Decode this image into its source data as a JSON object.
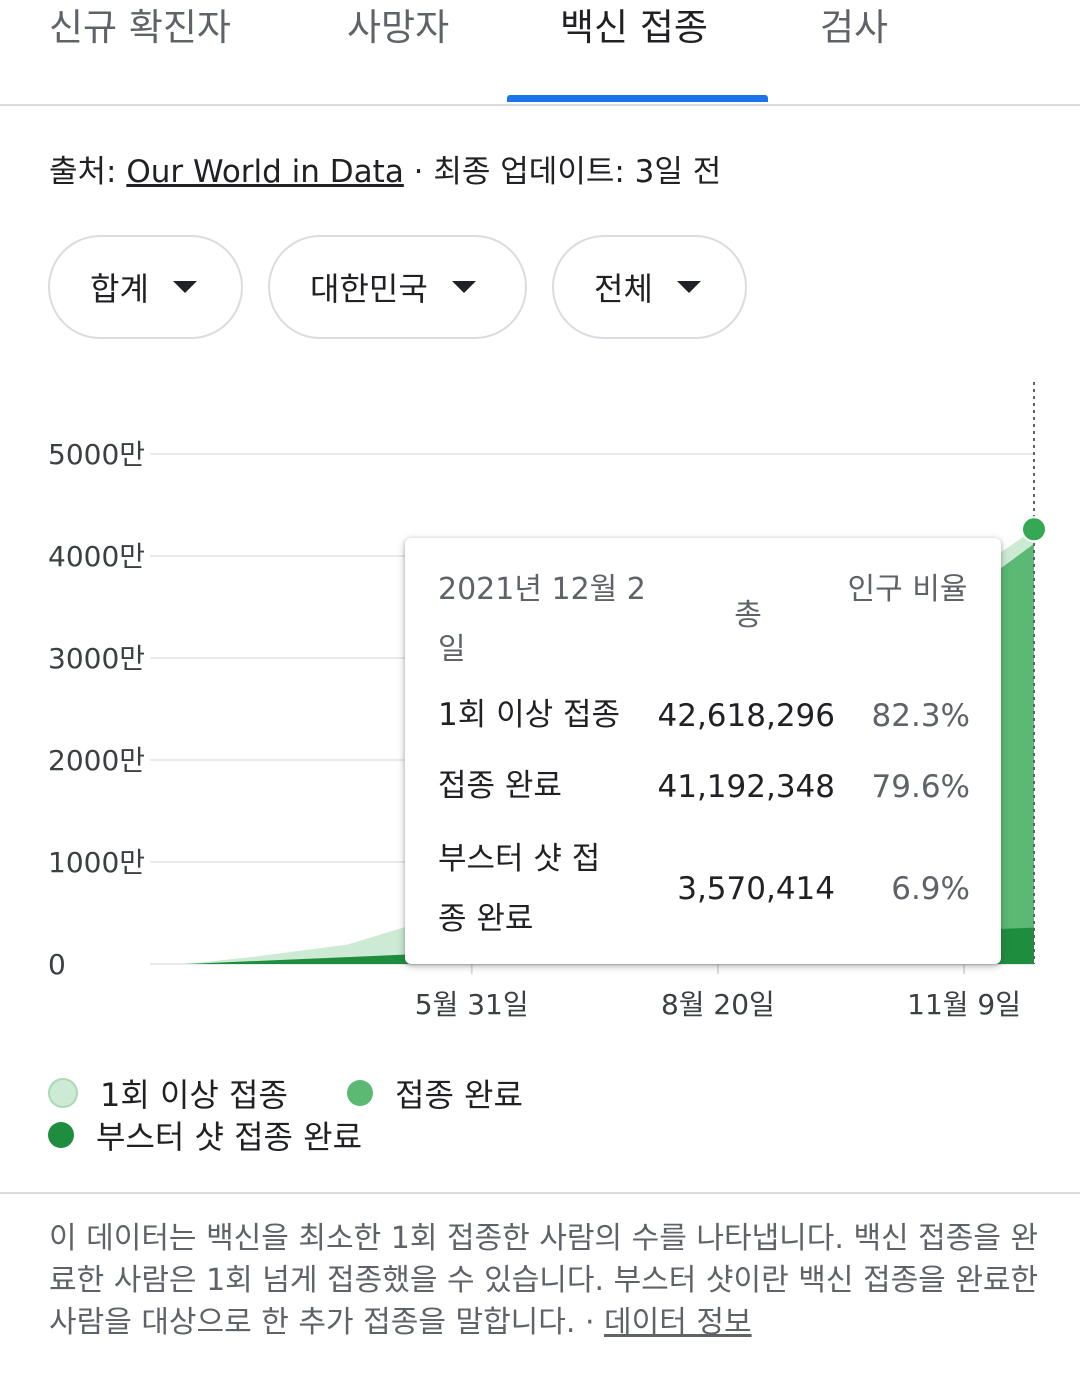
{
  "tabs": [
    {
      "label": "신규 확진자"
    },
    {
      "label": "사망자"
    },
    {
      "label": "백신 접종"
    },
    {
      "label": "검사"
    }
  ],
  "source": {
    "prefix": "출처: ",
    "link": "Our World in Data",
    "suffix": " · 최종 업데이트: 3일 전"
  },
  "filters": [
    {
      "label": "합계"
    },
    {
      "label": "대한민국"
    },
    {
      "label": "전체"
    }
  ],
  "colors": {
    "one_dose": "#cdead5",
    "fully": "#5bb974",
    "booster": "#1e8e3e",
    "accent": "#1a73e8"
  },
  "chart_data": {
    "type": "area",
    "y_ticks": [
      "0",
      "1000만",
      "2000만",
      "3000만",
      "4000만",
      "5000만"
    ],
    "ylim": [
      0,
      50000000
    ],
    "x_ticks": [
      "5월 31일",
      "8월 20일",
      "11월 9일"
    ],
    "x_start": "2021-02-26",
    "x_end": "2021-12-02",
    "series": [
      {
        "name": "1회 이상 접종",
        "x": [
          "2021-02-26",
          "2021-03-20",
          "2021-04-20",
          "2021-05-10",
          "2021-05-20",
          "2021-05-31",
          "2021-12-02"
        ],
        "y": [
          0,
          700000,
          1900000,
          3700000,
          4000000,
          4200000,
          42618296
        ]
      },
      {
        "name": "접종 완료",
        "x": [
          "2021-02-26",
          "2021-03-20",
          "2021-04-20",
          "2021-05-10",
          "2021-05-31",
          "2021-12-02"
        ],
        "y": [
          0,
          100000,
          300000,
          500000,
          700000,
          41192348
        ]
      },
      {
        "name": "부스터 샷 접종 완료",
        "x": [
          "2021-02-26",
          "2021-12-02"
        ],
        "y": [
          0,
          3570414
        ]
      }
    ],
    "tooltip": {
      "date": "2021년 12월 2일",
      "total_header": "총",
      "pct_header": "인구 비율",
      "rows": [
        {
          "label": "1회 이상 접종",
          "total": "42,618,296",
          "pct": "82.3%"
        },
        {
          "label": "접종 완료",
          "total": "41,192,348",
          "pct": "79.6%"
        },
        {
          "label": "부스터 샷 접종 완료",
          "total": "3,570,414",
          "pct": "6.9%"
        }
      ]
    }
  },
  "legend": [
    {
      "label": "1회 이상 접종",
      "icon": "light-green-dot-icon"
    },
    {
      "label": "접종 완료",
      "icon": "green-dot-icon"
    },
    {
      "label": "부스터 샷 접종 완료",
      "icon": "dark-green-dot-icon"
    }
  ],
  "note": {
    "text": "이 데이터는 백신을 최소한 1회 접종한 사람의 수를 나타냅니다. 백신 접종을 완료한 사람은 1회 넘게 접종했을 수 있습니다. 부스터 샷이란 백신 접종을 완료한 사람을 대상으로 한 추가 접종을 말합니다.  · ",
    "link": "데이터 정보"
  }
}
